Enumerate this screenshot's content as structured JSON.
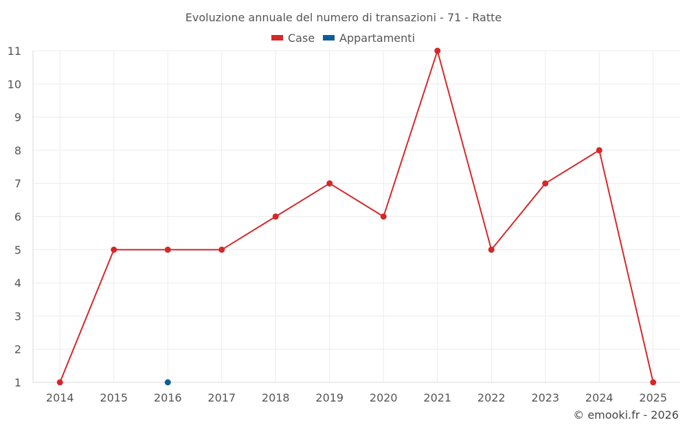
{
  "chart_data": {
    "type": "line",
    "title": "Evoluzione annuale del numero di transazioni - 71 - Ratte",
    "categories": [
      "2014",
      "2015",
      "2016",
      "2017",
      "2018",
      "2019",
      "2020",
      "2021",
      "2022",
      "2023",
      "2024",
      "2025"
    ],
    "series": [
      {
        "name": "Case",
        "color": "#d62728",
        "values": [
          1,
          5,
          5,
          5,
          6,
          7,
          6,
          11,
          5,
          7,
          8,
          1
        ]
      },
      {
        "name": "Appartamenti",
        "color": "#0d5f9a",
        "values": [
          null,
          null,
          1,
          null,
          null,
          null,
          null,
          null,
          null,
          null,
          null,
          null
        ]
      }
    ],
    "y_ticks": [
      "1",
      "2",
      "3",
      "4",
      "5",
      "6",
      "7",
      "8",
      "9",
      "10",
      "11"
    ],
    "ylim": [
      1,
      11
    ],
    "grid": true,
    "legend_position": "top-center",
    "xlabel": "",
    "ylabel": ""
  },
  "credit": "© emooki.fr - 2026"
}
